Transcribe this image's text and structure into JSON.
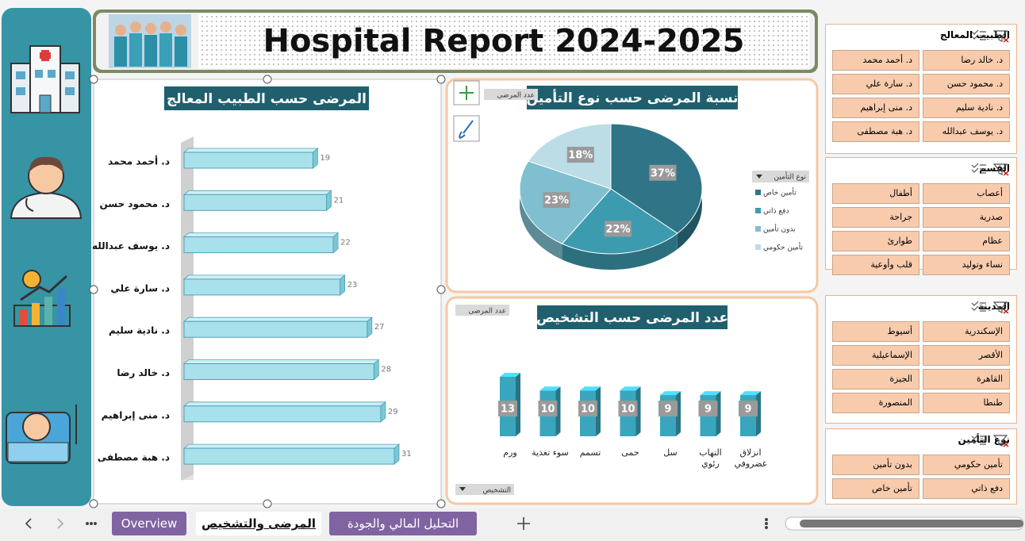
{
  "header": {
    "title": "Hospital Report 2024-2025"
  },
  "chart_data": [
    {
      "type": "hbar",
      "title": "المرضى حسب الطبيب المعالج",
      "categories": [
        "د. أحمد محمد",
        "د. محمود حسن",
        "د. يوسف عبدالله",
        "د. سارة علي",
        "د. نادية سليم",
        "د. خالد رضا",
        "د. منى إبراهيم",
        "د. هبة مصطفى"
      ],
      "values": [
        19,
        21,
        22,
        23,
        27,
        28,
        29,
        31
      ],
      "color": "#a8e0ec"
    },
    {
      "type": "pie",
      "title": "نسبة المرضى حسب  نوع التأمين",
      "field_button": "عدد المرضى",
      "legend_title": "نوع التأمين",
      "legend": "right",
      "categories": [
        "تأمين خاص",
        "دفع ذاتي",
        "بدون تأمين",
        "تأمين حكومي"
      ],
      "values": [
        37,
        22,
        23,
        18
      ],
      "value_labels": [
        "37%",
        "22%",
        "23%",
        "18%"
      ],
      "colors": [
        "#2f7587",
        "#3d9bb0",
        "#80bfcf",
        "#bcdce6"
      ]
    },
    {
      "type": "column",
      "title": "عدد المرضى حسب التشخيص",
      "field_button": "عدد المرضى",
      "axis_field": "التشخيص",
      "categories": [
        "ورم",
        "سوء تغذية",
        "تسمم",
        "حمى",
        "سل",
        "التهاب رئوي",
        "انزلاق غضروفي"
      ],
      "values": [
        13,
        10,
        10,
        10,
        9,
        9,
        9
      ],
      "color": "#3aa6bd"
    }
  ],
  "slicers": [
    {
      "title": "الطبيب المعالج",
      "items": [
        "د. خالد رضا",
        "د. أحمد محمد",
        "د. محمود حسن",
        "د. سارة علي",
        "د. نادية سليم",
        "د. منى إبراهيم",
        "د. يوسف عبدالله",
        "د. هبة مصطفى"
      ]
    },
    {
      "title": "القسم",
      "items": [
        "أعصاب",
        "أطفال",
        "صدرية",
        "جراحة",
        "عظام",
        "طوارئ",
        "نساء وتوليد",
        "قلب وأوعية"
      ]
    },
    {
      "title": "المدينة",
      "items": [
        "الإسكندرية",
        "أسيوط",
        "الأقصر",
        "الإسماعيلية",
        "القاهرة",
        "الجيزة",
        "طنطا",
        "المنصورة"
      ]
    },
    {
      "title": "نوع التأمين",
      "items": [
        "تأمين حكومي",
        "بدون تأمين",
        "دفع ذاتي",
        "تأمين خاص"
      ]
    }
  ],
  "tabs": [
    "Overview",
    "المرضى والتشخيص",
    "التحليل المالي والجودة"
  ]
}
